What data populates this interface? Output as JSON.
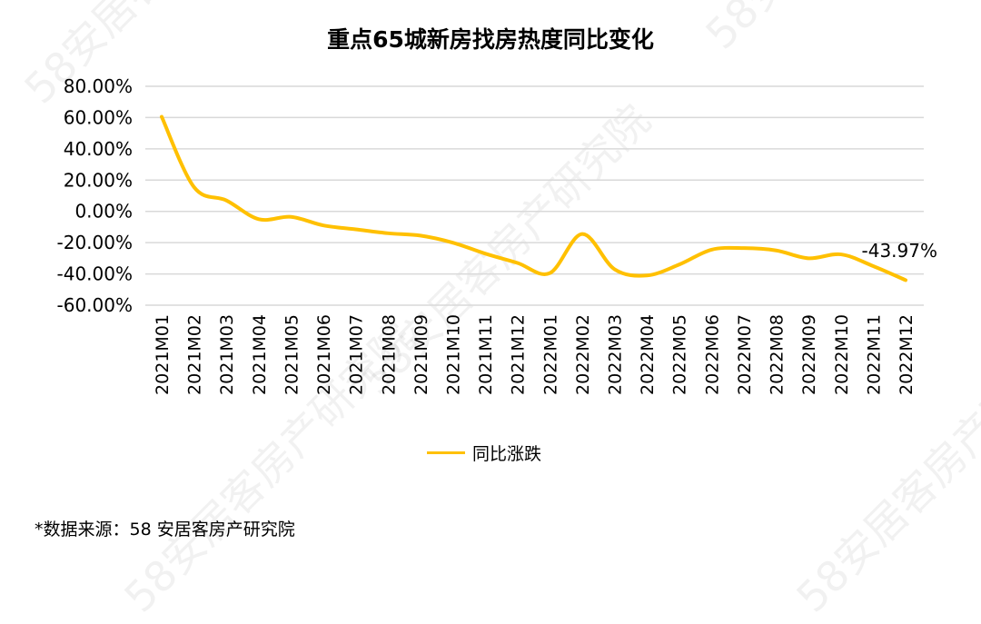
{
  "watermark": "58安居客房产研究院",
  "chart_data": {
    "type": "line",
    "title": "重点65城新房找房热度同比变化",
    "categories": [
      "2021M01",
      "2021M02",
      "2021M03",
      "2021M04",
      "2021M05",
      "2021M06",
      "2021M07",
      "2021M08",
      "2021M09",
      "2021M10",
      "2021M11",
      "2021M12",
      "2022M01",
      "2022M02",
      "2022M03",
      "2022M04",
      "2022M05",
      "2022M06",
      "2022M07",
      "2022M08",
      "2022M09",
      "2022M10",
      "2022M11",
      "2022M12"
    ],
    "series": [
      {
        "name": "同比涨跌",
        "color": "#FFC000",
        "values": [
          60.5,
          15.5,
          7,
          -5,
          -3.5,
          -9,
          -11.5,
          -14,
          -15.5,
          -20,
          -27,
          -33,
          -39.5,
          -14.5,
          -37,
          -41,
          -34,
          -24.5,
          -23.5,
          -25,
          -30,
          -27.5,
          -35,
          -43.97
        ]
      }
    ],
    "ylim": [
      -60,
      80
    ],
    "yticks": [
      80,
      60,
      40,
      20,
      0,
      -20,
      -40,
      -60
    ],
    "ytick_labels": [
      "80.00%",
      "60.00%",
      "40.00%",
      "20.00%",
      "0.00%",
      "-20.00%",
      "-40.00%",
      "-60.00%"
    ],
    "grid": true,
    "legend_position": "bottom",
    "annotation": {
      "index": 23,
      "text": "-43.97%"
    },
    "xlabel": "",
    "ylabel": ""
  },
  "source_note": "*数据来源：58 安居客房产研究院"
}
